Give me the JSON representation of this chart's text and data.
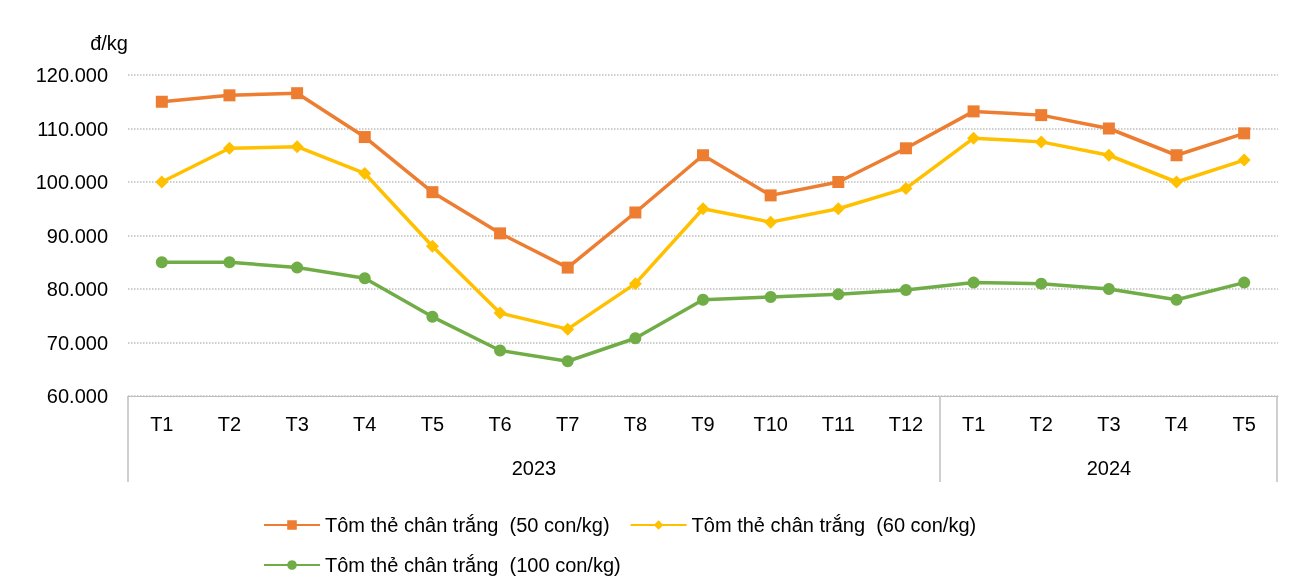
{
  "chart_data": {
    "type": "line",
    "ylabel": "đ/kg",
    "categories": [
      "T1",
      "T2",
      "T3",
      "T4",
      "T5",
      "T6",
      "T7",
      "T8",
      "T9",
      "T10",
      "T11",
      "T12",
      "T1",
      "T2",
      "T3",
      "T4",
      "T5"
    ],
    "annotations": [
      "2023",
      "2024"
    ],
    "series": [
      {
        "name": "Tôm thẻ chân trắng  (50 con/kg)",
        "color": "#ed7d31",
        "marker": "square",
        "values": [
          115000,
          116200,
          116600,
          108400,
          98100,
          90400,
          84000,
          94300,
          105000,
          97500,
          100000,
          106300,
          113200,
          112500,
          110000,
          105000,
          109100
        ]
      },
      {
        "name": "Tôm thẻ chân trắng  (60 con/kg)",
        "color": "#ffc000",
        "marker": "diamond",
        "values": [
          100000,
          106300,
          106600,
          101600,
          88000,
          75500,
          72500,
          81000,
          95000,
          92500,
          95000,
          98800,
          108200,
          107500,
          105000,
          100000,
          104100
        ]
      },
      {
        "name": "Tôm thẻ chân trắng  (100 con/kg)",
        "color": "#70ad47",
        "marker": "circle",
        "values": [
          85000,
          85000,
          84000,
          82000,
          74800,
          68500,
          66500,
          70800,
          78000,
          78500,
          79000,
          79800,
          81200,
          81000,
          80000,
          78000,
          81200
        ]
      }
    ],
    "ylim": [
      60000,
      120000
    ],
    "yticks": [
      {
        "value": 60000,
        "label": "60.000"
      },
      {
        "value": 70000,
        "label": "70.000"
      },
      {
        "value": 80000,
        "label": "80.000"
      },
      {
        "value": 90000,
        "label": "90.000"
      },
      {
        "value": 100000,
        "label": "100.000"
      },
      {
        "value": 110000,
        "label": "110.000"
      },
      {
        "value": 120000,
        "label": "120.000"
      }
    ],
    "grid": "y",
    "legend": "bottom",
    "line_style": "solid"
  }
}
